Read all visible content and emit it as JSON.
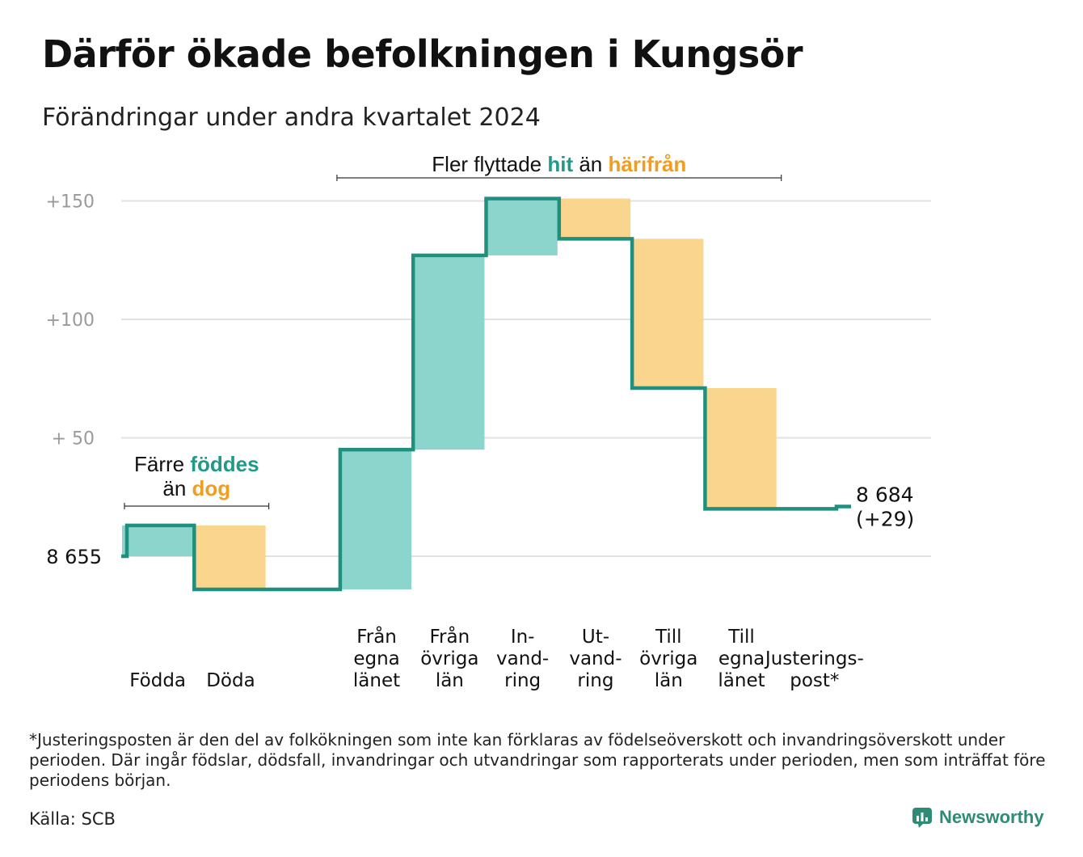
{
  "title": "Därför ökade befolkningen i Kungsör",
  "subtitle": "Förändringar under andra kvartalet 2024",
  "footnote": "*Justeringsposten är den del av folkökningen som inte kan förklaras av födelseöverskott och invandringsöverskott under perioden. Där ingår födslar, dödsfall, invandringar och utvandringar som rapporterats under perioden, men som inträffat före periodens början.",
  "source": "Källa: SCB",
  "brand": "Newsworthy",
  "colors": {
    "increase_fill": "#8cd5cc",
    "decrease_fill": "#fad58e",
    "line": "#1f8f7e",
    "teal_text": "#1f9a88",
    "orange_text": "#f29d1e",
    "grid": "#e2e2e2",
    "tick": "#9a9a9a"
  },
  "chart_data": {
    "type": "waterfall",
    "start_label": "8  655",
    "start_value": 8655,
    "end_label_value": "8 684",
    "end_label_change": "(+29)",
    "end_value": 8684,
    "y_ticks": [
      {
        "value": 0,
        "label": ""
      },
      {
        "value": 50,
        "label": "+  50"
      },
      {
        "value": 100,
        "label": "+100"
      },
      {
        "value": 150,
        "label": "+150"
      }
    ],
    "ylim": [
      -20,
      160
    ],
    "steps": [
      {
        "label_lines": [
          "Födda"
        ],
        "value": 13,
        "kind": "increase"
      },
      {
        "label_lines": [
          "Döda"
        ],
        "value": -27,
        "kind": "decrease"
      },
      {
        "label_lines": [
          ""
        ],
        "value": 0,
        "kind": "gap"
      },
      {
        "label_lines": [
          "Från",
          "egna",
          "länet"
        ],
        "value": 59,
        "kind": "increase"
      },
      {
        "label_lines": [
          "Från",
          "övriga",
          "län"
        ],
        "value": 82,
        "kind": "increase"
      },
      {
        "label_lines": [
          "In-",
          "vand-",
          "ring"
        ],
        "value": 24,
        "kind": "increase"
      },
      {
        "label_lines": [
          "Ut-",
          "vand-",
          "ring"
        ],
        "value": -17,
        "kind": "decrease"
      },
      {
        "label_lines": [
          "Till",
          "övriga",
          "län"
        ],
        "value": -63,
        "kind": "decrease"
      },
      {
        "label_lines": [
          "Till",
          "egna",
          "länet"
        ],
        "value": -51,
        "kind": "decrease"
      },
      {
        "label_lines": [
          "Justerings-",
          "post*"
        ],
        "value": 1,
        "kind": "adjustment"
      }
    ],
    "annotations": {
      "births": {
        "parts": [
          [
            "Färre ",
            "plain"
          ],
          [
            "föddes",
            "teal"
          ]
        ],
        "parts2": [
          [
            "än ",
            "plain"
          ],
          [
            "dog",
            "orange"
          ]
        ]
      },
      "migration": {
        "parts": [
          [
            "Fler flyttade ",
            "plain"
          ],
          [
            "hit",
            "teal"
          ],
          [
            "  än ",
            "plain"
          ],
          [
            "härifrån",
            "orange"
          ]
        ]
      }
    }
  }
}
